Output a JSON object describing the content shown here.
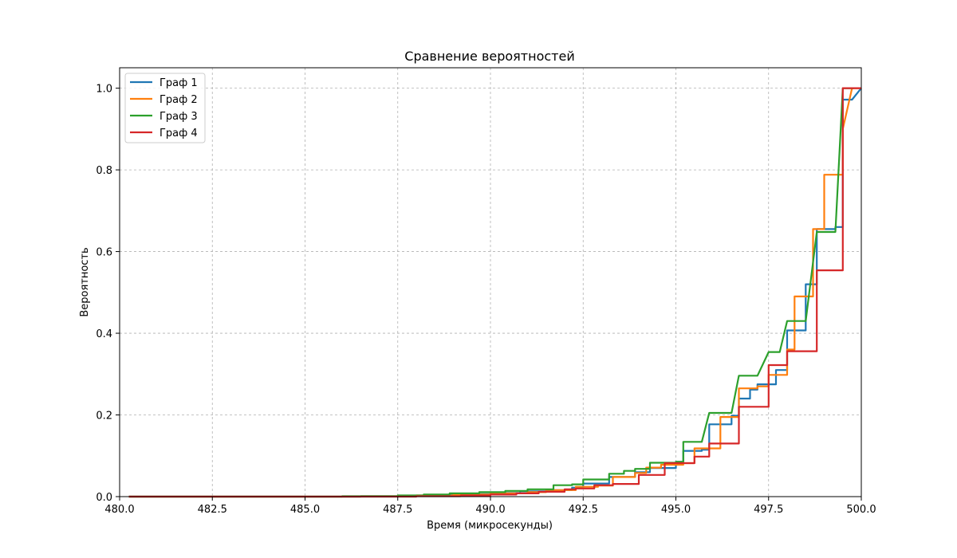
{
  "chart_data": {
    "type": "line",
    "title": "Сравнение вероятностей",
    "xlabel": "Время (микросекунды)",
    "ylabel": "Вероятность",
    "xlim": [
      480,
      500
    ],
    "ylim": [
      0,
      1.05
    ],
    "xticks": [
      480.0,
      482.5,
      485.0,
      487.5,
      490.0,
      492.5,
      495.0,
      497.5,
      500.0
    ],
    "xtick_labels": [
      "480.0",
      "482.5",
      "485.0",
      "487.5",
      "490.0",
      "492.5",
      "495.0",
      "497.5",
      "500.0"
    ],
    "yticks": [
      0.0,
      0.2,
      0.4,
      0.6,
      0.8,
      1.0
    ],
    "ytick_labels": [
      "0.0",
      "0.2",
      "0.4",
      "0.6",
      "0.8",
      "1.0"
    ],
    "grid": true,
    "legend_position": "top-left",
    "series": [
      {
        "name": "Граф 1",
        "color": "#1f77b4",
        "points": [
          [
            480.25,
            0
          ],
          [
            486.5,
            0
          ],
          [
            486.5,
            0.001
          ],
          [
            487.5,
            0.001
          ],
          [
            487.5,
            0.002
          ],
          [
            488.3,
            0.002
          ],
          [
            488.3,
            0.004
          ],
          [
            489.2,
            0.004
          ],
          [
            489.2,
            0.006
          ],
          [
            490,
            0.006
          ],
          [
            490,
            0.009
          ],
          [
            490.8,
            0.009
          ],
          [
            490.8,
            0.013
          ],
          [
            491.7,
            0.013
          ],
          [
            491.7,
            0.016
          ],
          [
            492.2,
            0.016
          ],
          [
            492.2,
            0.022
          ],
          [
            492.5,
            0.022
          ],
          [
            492.5,
            0.032
          ],
          [
            493.2,
            0.032
          ],
          [
            493.2,
            0.048
          ],
          [
            493.9,
            0.048
          ],
          [
            493.9,
            0.06
          ],
          [
            494.3,
            0.06
          ],
          [
            494.3,
            0.07
          ],
          [
            495.0,
            0.07
          ],
          [
            495.0,
            0.085
          ],
          [
            495.2,
            0.085
          ],
          [
            495.2,
            0.112
          ],
          [
            495.7,
            0.112
          ],
          [
            495.7,
            0.115
          ],
          [
            495.9,
            0.115
          ],
          [
            495.9,
            0.177
          ],
          [
            496.5,
            0.177
          ],
          [
            496.5,
            0.198
          ],
          [
            496.7,
            0.198
          ],
          [
            496.7,
            0.24
          ],
          [
            497.0,
            0.24
          ],
          [
            497.0,
            0.262
          ],
          [
            497.2,
            0.262
          ],
          [
            497.2,
            0.275
          ],
          [
            497.7,
            0.275
          ],
          [
            497.7,
            0.31
          ],
          [
            498.0,
            0.31
          ],
          [
            498.0,
            0.407
          ],
          [
            498.5,
            0.407
          ],
          [
            498.5,
            0.52
          ],
          [
            498.8,
            0.52
          ],
          [
            498.8,
            0.655
          ],
          [
            499.3,
            0.655
          ],
          [
            499.3,
            0.66
          ],
          [
            499.5,
            0.66
          ],
          [
            499.5,
            0.972
          ],
          [
            499.75,
            0.972
          ],
          [
            500,
            1.0
          ]
        ]
      },
      {
        "name": "Граф 2",
        "color": "#ff7f0e",
        "points": [
          [
            480.25,
            0
          ],
          [
            486.5,
            0
          ],
          [
            486.5,
            0.001
          ],
          [
            488,
            0.001
          ],
          [
            488,
            0.003
          ],
          [
            489,
            0.003
          ],
          [
            489,
            0.005
          ],
          [
            490,
            0.005
          ],
          [
            490,
            0.008
          ],
          [
            491,
            0.008
          ],
          [
            491,
            0.011
          ],
          [
            491.5,
            0.011
          ],
          [
            491.5,
            0.016
          ],
          [
            492.3,
            0.016
          ],
          [
            492.3,
            0.024
          ],
          [
            492.9,
            0.024
          ],
          [
            492.9,
            0.027
          ],
          [
            493.3,
            0.027
          ],
          [
            493.3,
            0.048
          ],
          [
            493.9,
            0.048
          ],
          [
            493.9,
            0.058
          ],
          [
            494.2,
            0.058
          ],
          [
            494.2,
            0.071
          ],
          [
            494.6,
            0.071
          ],
          [
            494.6,
            0.078
          ],
          [
            495.2,
            0.078
          ],
          [
            495.2,
            0.082
          ],
          [
            495.5,
            0.082
          ],
          [
            495.5,
            0.118
          ],
          [
            496.2,
            0.118
          ],
          [
            496.2,
            0.195
          ],
          [
            496.7,
            0.195
          ],
          [
            496.7,
            0.265
          ],
          [
            497.2,
            0.265
          ],
          [
            497.2,
            0.27
          ],
          [
            497.5,
            0.27
          ],
          [
            497.5,
            0.298
          ],
          [
            498.0,
            0.298
          ],
          [
            498.0,
            0.36
          ],
          [
            498.2,
            0.36
          ],
          [
            498.2,
            0.49
          ],
          [
            498.7,
            0.49
          ],
          [
            498.7,
            0.655
          ],
          [
            499.0,
            0.655
          ],
          [
            499.0,
            0.788
          ],
          [
            499.5,
            0.788
          ],
          [
            499.5,
            0.9
          ],
          [
            499.75,
            1.0
          ],
          [
            500,
            1.0
          ]
        ]
      },
      {
        "name": "Граф 3",
        "color": "#2ca02c",
        "points": [
          [
            480.25,
            0
          ],
          [
            486,
            0
          ],
          [
            486,
            0.001
          ],
          [
            487.5,
            0.001
          ],
          [
            487.5,
            0.003
          ],
          [
            488.2,
            0.003
          ],
          [
            488.2,
            0.005
          ],
          [
            488.9,
            0.005
          ],
          [
            488.9,
            0.008
          ],
          [
            489.7,
            0.008
          ],
          [
            489.7,
            0.011
          ],
          [
            490.4,
            0.011
          ],
          [
            490.4,
            0.014
          ],
          [
            491,
            0.014
          ],
          [
            491,
            0.018
          ],
          [
            491.7,
            0.018
          ],
          [
            491.7,
            0.028
          ],
          [
            492.2,
            0.028
          ],
          [
            492.2,
            0.03
          ],
          [
            492.5,
            0.03
          ],
          [
            492.5,
            0.042
          ],
          [
            493.2,
            0.042
          ],
          [
            493.2,
            0.056
          ],
          [
            493.6,
            0.056
          ],
          [
            493.6,
            0.063
          ],
          [
            493.9,
            0.063
          ],
          [
            493.9,
            0.068
          ],
          [
            494.3,
            0.068
          ],
          [
            494.3,
            0.083
          ],
          [
            495.0,
            0.083
          ],
          [
            495.0,
            0.085
          ],
          [
            495.2,
            0.085
          ],
          [
            495.2,
            0.134
          ],
          [
            495.7,
            0.134
          ],
          [
            495.9,
            0.205
          ],
          [
            496.5,
            0.205
          ],
          [
            496.7,
            0.296
          ],
          [
            497.2,
            0.296
          ],
          [
            497.5,
            0.354
          ],
          [
            497.8,
            0.354
          ],
          [
            498.0,
            0.43
          ],
          [
            498.5,
            0.43
          ],
          [
            498.8,
            0.648
          ],
          [
            499.3,
            0.648
          ],
          [
            499.5,
            1.0
          ],
          [
            499.8,
            1.0
          ]
        ]
      },
      {
        "name": "Граф 4",
        "color": "#d62728",
        "points": [
          [
            480.25,
            0
          ],
          [
            488,
            0
          ],
          [
            488,
            0.001
          ],
          [
            489.2,
            0.001
          ],
          [
            489.2,
            0.003
          ],
          [
            490,
            0.003
          ],
          [
            490,
            0.005
          ],
          [
            490.7,
            0.005
          ],
          [
            490.7,
            0.008
          ],
          [
            491.3,
            0.008
          ],
          [
            491.3,
            0.012
          ],
          [
            492.0,
            0.012
          ],
          [
            492.0,
            0.018
          ],
          [
            492.3,
            0.018
          ],
          [
            492.3,
            0.02
          ],
          [
            492.8,
            0.02
          ],
          [
            492.8,
            0.028
          ],
          [
            493.3,
            0.028
          ],
          [
            493.3,
            0.031
          ],
          [
            494.0,
            0.031
          ],
          [
            494.0,
            0.053
          ],
          [
            494.7,
            0.053
          ],
          [
            494.7,
            0.082
          ],
          [
            495.5,
            0.082
          ],
          [
            495.5,
            0.098
          ],
          [
            495.9,
            0.098
          ],
          [
            495.9,
            0.13
          ],
          [
            496.7,
            0.13
          ],
          [
            496.7,
            0.22
          ],
          [
            497.5,
            0.22
          ],
          [
            497.5,
            0.322
          ],
          [
            498.0,
            0.322
          ],
          [
            498.0,
            0.356
          ],
          [
            498.8,
            0.356
          ],
          [
            498.8,
            0.554
          ],
          [
            499.5,
            0.554
          ],
          [
            499.5,
            1.0
          ],
          [
            500,
            1.0
          ]
        ]
      }
    ]
  }
}
